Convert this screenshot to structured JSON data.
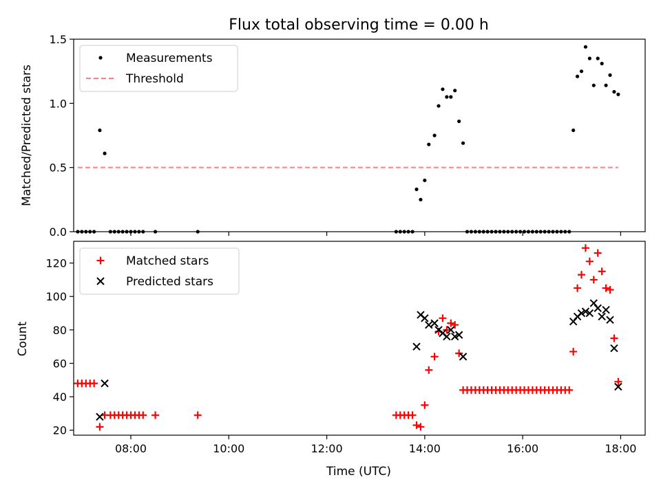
{
  "figure": {
    "title": "Flux total observing time = 0.00 h"
  },
  "chart_data": [
    {
      "type": "scatter",
      "panel": "top",
      "title": "Flux total observing time = 0.00 h",
      "xlabel": "",
      "ylabel": "Matched/Predicted stars",
      "x_ticks": [
        "08:00",
        "10:00",
        "12:00",
        "14:00",
        "16:00",
        "18:00"
      ],
      "y_ticks": [
        "0.0",
        "0.5",
        "1.0",
        "1.5"
      ],
      "xlim": [
        "06:50",
        "18:30"
      ],
      "ylim": [
        0,
        1.5
      ],
      "legend_position": "upper left",
      "grid": false,
      "series": [
        {
          "name": "Measurements",
          "kind": "points",
          "color": "#000000",
          "points": [
            {
              "x": "06:55",
              "y": 0
            },
            {
              "x": "07:00",
              "y": 0
            },
            {
              "x": "07:05",
              "y": 0
            },
            {
              "x": "07:10",
              "y": 0
            },
            {
              "x": "07:15",
              "y": 0
            },
            {
              "x": "07:22",
              "y": 0.79
            },
            {
              "x": "07:28",
              "y": 0.61
            },
            {
              "x": "07:35",
              "y": 0
            },
            {
              "x": "07:40",
              "y": 0
            },
            {
              "x": "07:45",
              "y": 0
            },
            {
              "x": "07:50",
              "y": 0
            },
            {
              "x": "07:55",
              "y": 0
            },
            {
              "x": "08:00",
              "y": 0
            },
            {
              "x": "08:05",
              "y": 0
            },
            {
              "x": "08:10",
              "y": 0
            },
            {
              "x": "08:15",
              "y": 0
            },
            {
              "x": "08:30",
              "y": 0
            },
            {
              "x": "09:22",
              "y": 0
            },
            {
              "x": "13:25",
              "y": 0
            },
            {
              "x": "13:30",
              "y": 0
            },
            {
              "x": "13:35",
              "y": 0
            },
            {
              "x": "13:40",
              "y": 0
            },
            {
              "x": "13:45",
              "y": 0
            },
            {
              "x": "13:50",
              "y": 0.33
            },
            {
              "x": "13:55",
              "y": 0.25
            },
            {
              "x": "14:00",
              "y": 0.4
            },
            {
              "x": "14:05",
              "y": 0.68
            },
            {
              "x": "14:12",
              "y": 0.75
            },
            {
              "x": "14:17",
              "y": 0.98
            },
            {
              "x": "14:22",
              "y": 1.11
            },
            {
              "x": "14:27",
              "y": 1.05
            },
            {
              "x": "14:32",
              "y": 1.05
            },
            {
              "x": "14:37",
              "y": 1.1
            },
            {
              "x": "14:42",
              "y": 0.86
            },
            {
              "x": "14:47",
              "y": 0.69
            },
            {
              "x": "14:52",
              "y": 0
            },
            {
              "x": "14:57",
              "y": 0
            },
            {
              "x": "15:02",
              "y": 0
            },
            {
              "x": "15:07",
              "y": 0
            },
            {
              "x": "15:12",
              "y": 0
            },
            {
              "x": "15:17",
              "y": 0
            },
            {
              "x": "15:22",
              "y": 0
            },
            {
              "x": "15:27",
              "y": 0
            },
            {
              "x": "15:32",
              "y": 0
            },
            {
              "x": "15:37",
              "y": 0
            },
            {
              "x": "15:42",
              "y": 0
            },
            {
              "x": "15:47",
              "y": 0
            },
            {
              "x": "15:52",
              "y": 0
            },
            {
              "x": "15:57",
              "y": 0
            },
            {
              "x": "16:02",
              "y": 0
            },
            {
              "x": "16:07",
              "y": 0
            },
            {
              "x": "16:12",
              "y": 0
            },
            {
              "x": "16:17",
              "y": 0
            },
            {
              "x": "16:22",
              "y": 0
            },
            {
              "x": "16:27",
              "y": 0
            },
            {
              "x": "16:32",
              "y": 0
            },
            {
              "x": "16:37",
              "y": 0
            },
            {
              "x": "16:42",
              "y": 0
            },
            {
              "x": "16:47",
              "y": 0
            },
            {
              "x": "16:52",
              "y": 0
            },
            {
              "x": "16:57",
              "y": 0
            },
            {
              "x": "17:02",
              "y": 0.79
            },
            {
              "x": "17:07",
              "y": 1.21
            },
            {
              "x": "17:12",
              "y": 1.25
            },
            {
              "x": "17:17",
              "y": 1.44
            },
            {
              "x": "17:22",
              "y": 1.35
            },
            {
              "x": "17:27",
              "y": 1.14
            },
            {
              "x": "17:32",
              "y": 1.35
            },
            {
              "x": "17:37",
              "y": 1.31
            },
            {
              "x": "17:42",
              "y": 1.14
            },
            {
              "x": "17:47",
              "y": 1.22
            },
            {
              "x": "17:52",
              "y": 1.09
            },
            {
              "x": "17:57",
              "y": 1.07
            }
          ]
        },
        {
          "name": "Threshold",
          "kind": "dashed-line",
          "color": "#ff7f7f",
          "points": [
            {
              "x": "06:55",
              "y": 0.5
            },
            {
              "x": "17:57",
              "y": 0.5
            }
          ]
        }
      ]
    },
    {
      "type": "scatter",
      "panel": "bottom",
      "xlabel": "Time (UTC)",
      "ylabel": "Count",
      "x_ticks": [
        "08:00",
        "10:00",
        "12:00",
        "14:00",
        "16:00",
        "18:00"
      ],
      "y_ticks": [
        "20",
        "40",
        "60",
        "80",
        "100",
        "120"
      ],
      "xlim": [
        "06:50",
        "18:30"
      ],
      "ylim": [
        17,
        133
      ],
      "legend_position": "upper left",
      "grid": false,
      "series": [
        {
          "name": "Matched stars",
          "marker": "plus",
          "color": "#ff0000",
          "points": [
            {
              "x": "06:55",
              "y": 48
            },
            {
              "x": "07:00",
              "y": 48
            },
            {
              "x": "07:05",
              "y": 48
            },
            {
              "x": "07:10",
              "y": 48
            },
            {
              "x": "07:15",
              "y": 48
            },
            {
              "x": "07:22",
              "y": 22
            },
            {
              "x": "07:28",
              "y": 29
            },
            {
              "x": "07:35",
              "y": 29
            },
            {
              "x": "07:40",
              "y": 29
            },
            {
              "x": "07:45",
              "y": 29
            },
            {
              "x": "07:50",
              "y": 29
            },
            {
              "x": "07:55",
              "y": 29
            },
            {
              "x": "08:00",
              "y": 29
            },
            {
              "x": "08:05",
              "y": 29
            },
            {
              "x": "08:10",
              "y": 29
            },
            {
              "x": "08:15",
              "y": 29
            },
            {
              "x": "08:30",
              "y": 29
            },
            {
              "x": "09:22",
              "y": 29
            },
            {
              "x": "13:25",
              "y": 29
            },
            {
              "x": "13:30",
              "y": 29
            },
            {
              "x": "13:35",
              "y": 29
            },
            {
              "x": "13:40",
              "y": 29
            },
            {
              "x": "13:45",
              "y": 29
            },
            {
              "x": "13:50",
              "y": 23
            },
            {
              "x": "13:55",
              "y": 22
            },
            {
              "x": "14:00",
              "y": 35
            },
            {
              "x": "14:05",
              "y": 56
            },
            {
              "x": "14:12",
              "y": 64
            },
            {
              "x": "14:17",
              "y": 79
            },
            {
              "x": "14:22",
              "y": 87
            },
            {
              "x": "14:27",
              "y": 80
            },
            {
              "x": "14:32",
              "y": 84
            },
            {
              "x": "14:37",
              "y": 83
            },
            {
              "x": "14:42",
              "y": 66
            },
            {
              "x": "14:47",
              "y": 44
            },
            {
              "x": "14:52",
              "y": 44
            },
            {
              "x": "14:57",
              "y": 44
            },
            {
              "x": "15:02",
              "y": 44
            },
            {
              "x": "15:07",
              "y": 44
            },
            {
              "x": "15:12",
              "y": 44
            },
            {
              "x": "15:17",
              "y": 44
            },
            {
              "x": "15:22",
              "y": 44
            },
            {
              "x": "15:27",
              "y": 44
            },
            {
              "x": "15:32",
              "y": 44
            },
            {
              "x": "15:37",
              "y": 44
            },
            {
              "x": "15:42",
              "y": 44
            },
            {
              "x": "15:47",
              "y": 44
            },
            {
              "x": "15:52",
              "y": 44
            },
            {
              "x": "15:57",
              "y": 44
            },
            {
              "x": "16:02",
              "y": 44
            },
            {
              "x": "16:07",
              "y": 44
            },
            {
              "x": "16:12",
              "y": 44
            },
            {
              "x": "16:17",
              "y": 44
            },
            {
              "x": "16:22",
              "y": 44
            },
            {
              "x": "16:27",
              "y": 44
            },
            {
              "x": "16:32",
              "y": 44
            },
            {
              "x": "16:37",
              "y": 44
            },
            {
              "x": "16:42",
              "y": 44
            },
            {
              "x": "16:47",
              "y": 44
            },
            {
              "x": "16:52",
              "y": 44
            },
            {
              "x": "16:57",
              "y": 44
            },
            {
              "x": "17:02",
              "y": 67
            },
            {
              "x": "17:07",
              "y": 105
            },
            {
              "x": "17:12",
              "y": 113
            },
            {
              "x": "17:17",
              "y": 129
            },
            {
              "x": "17:22",
              "y": 121
            },
            {
              "x": "17:27",
              "y": 110
            },
            {
              "x": "17:32",
              "y": 126
            },
            {
              "x": "17:37",
              "y": 115
            },
            {
              "x": "17:42",
              "y": 105
            },
            {
              "x": "17:47",
              "y": 104
            },
            {
              "x": "17:52",
              "y": 75
            },
            {
              "x": "17:57",
              "y": 49
            }
          ]
        },
        {
          "name": "Predicted stars",
          "marker": "x",
          "color": "#000000",
          "points": [
            {
              "x": "07:22",
              "y": 28
            },
            {
              "x": "07:28",
              "y": 48
            },
            {
              "x": "13:50",
              "y": 70
            },
            {
              "x": "13:55",
              "y": 89
            },
            {
              "x": "14:00",
              "y": 87
            },
            {
              "x": "14:05",
              "y": 83
            },
            {
              "x": "14:12",
              "y": 84
            },
            {
              "x": "14:17",
              "y": 80
            },
            {
              "x": "14:22",
              "y": 78
            },
            {
              "x": "14:27",
              "y": 76
            },
            {
              "x": "14:32",
              "y": 80
            },
            {
              "x": "14:37",
              "y": 76
            },
            {
              "x": "14:42",
              "y": 77
            },
            {
              "x": "14:47",
              "y": 64
            },
            {
              "x": "17:02",
              "y": 85
            },
            {
              "x": "17:07",
              "y": 88
            },
            {
              "x": "17:12",
              "y": 90
            },
            {
              "x": "17:17",
              "y": 91
            },
            {
              "x": "17:22",
              "y": 90
            },
            {
              "x": "17:27",
              "y": 96
            },
            {
              "x": "17:32",
              "y": 93
            },
            {
              "x": "17:37",
              "y": 88
            },
            {
              "x": "17:42",
              "y": 92
            },
            {
              "x": "17:47",
              "y": 86
            },
            {
              "x": "17:52",
              "y": 69
            },
            {
              "x": "17:57",
              "y": 46
            }
          ]
        }
      ]
    }
  ]
}
